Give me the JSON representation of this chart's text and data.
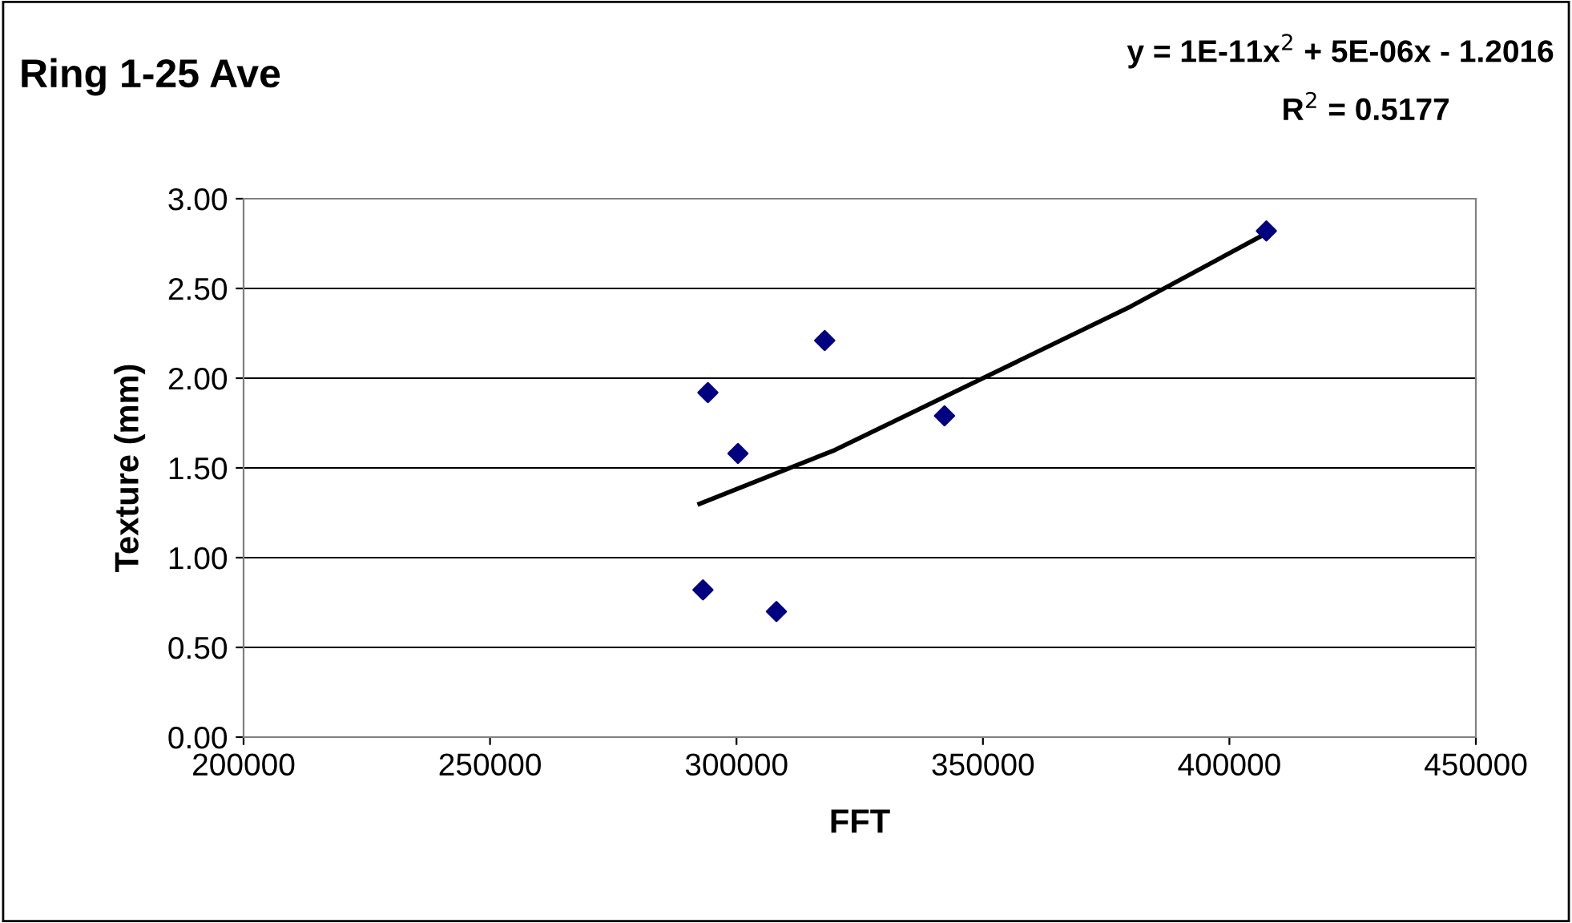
{
  "chart_data": {
    "type": "scatter",
    "title": "Ring 1-25 Ave",
    "xlabel": "FFT",
    "ylabel": "Texture (mm)",
    "annotations": [
      "y = 1E-11x$^{2}$ + 5E-06x - 1.2016",
      "R$^{2}$ = 0.5177"
    ],
    "series": [
      {
        "color": "#000080",
        "marker": "diamond",
        "x": [
          293200,
          294200,
          300300,
          308100,
          317900,
          342200,
          407500
        ],
        "values": [
          0.82,
          1.92,
          1.58,
          0.7,
          2.21,
          1.79,
          2.82
        ]
      },
      {
        "type": "line",
        "color": "#000000",
        "line_style": "solid",
        "x": [
          292500,
          320000,
          350000,
          380000,
          407000
        ],
        "values": [
          1.3,
          1.6,
          2.0,
          2.4,
          2.8
        ]
      }
    ],
    "xlim": [
      200000,
      450000
    ],
    "xticks": [
      200000,
      250000,
      300000,
      350000,
      400000,
      450000
    ],
    "ylim": [
      0,
      3
    ],
    "yticks": [
      {
        "value": 0,
        "label": "0.00"
      },
      {
        "value": 0.5,
        "label": "0.50"
      },
      {
        "value": 1,
        "label": "1.00"
      },
      {
        "value": 1.5,
        "label": "1.50"
      },
      {
        "value": 2,
        "label": "2.00"
      },
      {
        "value": 2.5,
        "label": "2.50"
      },
      {
        "value": 3,
        "label": "3.00"
      }
    ],
    "grid": "y",
    "legend": false
  }
}
